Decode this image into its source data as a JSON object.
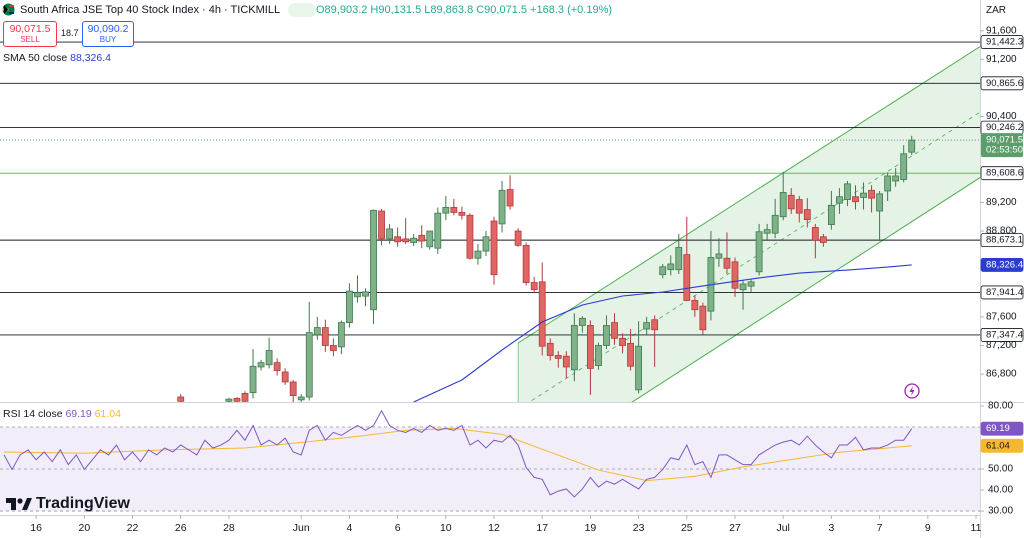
{
  "header": {
    "title": "South Africa JSE Top 40 Stock Index · 4h · TICKMILL",
    "ohlc": "O89,903.2 H90,131.5 L89,863.8 C90,071.5 +168.3 (+0.19%)",
    "sell_price": "90,071.5",
    "sell": "SELL",
    "spread": "18.7",
    "buy_price": "90,090.2",
    "buy": "BUY",
    "currency": "ZAR",
    "logo": "TradingView"
  },
  "chart_data": {
    "type": "candlestick",
    "up_color": "#7fb28a",
    "down_color": "#e06666",
    "xlim": [
      -0.5,
      121.5
    ],
    "ylim": [
      86410,
      92030
    ],
    "xticks": [
      {
        "value": 4,
        "label": "16"
      },
      {
        "value": 10,
        "label": "20"
      },
      {
        "value": 16,
        "label": "22"
      },
      {
        "value": 22,
        "label": "26"
      },
      {
        "value": 28,
        "label": "28"
      },
      {
        "value": 37,
        "label": "Jun"
      },
      {
        "value": 43,
        "label": "4"
      },
      {
        "value": 49,
        "label": "6"
      },
      {
        "value": 55,
        "label": "10"
      },
      {
        "value": 61,
        "label": "12"
      },
      {
        "value": 67,
        "label": "17"
      },
      {
        "value": 73,
        "label": "19"
      },
      {
        "value": 79,
        "label": "23"
      },
      {
        "value": 85,
        "label": "25"
      },
      {
        "value": 91,
        "label": "27"
      },
      {
        "value": 97,
        "label": "Jul"
      },
      {
        "value": 103,
        "label": "3"
      },
      {
        "value": 109,
        "label": "7"
      },
      {
        "value": 115,
        "label": "9"
      },
      {
        "value": 121,
        "label": "11"
      }
    ],
    "yticks": [
      {
        "value": 86800,
        "label": "86,800"
      },
      {
        "value": 87200,
        "label": "87,200"
      },
      {
        "value": 87600,
        "label": "87,600"
      },
      {
        "value": 88800,
        "label": "88,800"
      },
      {
        "value": 89200,
        "label": "89,200"
      },
      {
        "value": 90400,
        "label": "90,400"
      },
      {
        "value": 91200,
        "label": "91,200"
      },
      {
        "value": 91600,
        "label": "91,600"
      }
    ],
    "levels": [
      {
        "value": 91442.3,
        "label": "91,442.3",
        "color": "#131722"
      },
      {
        "value": 90865.6,
        "label": "90,865.6",
        "color": "#131722"
      },
      {
        "value": 90246.2,
        "label": "90,246.2",
        "color": "#131722"
      },
      {
        "value": 89608.6,
        "label": "89,608.6",
        "color": "#4caf50"
      },
      {
        "value": 88673.1,
        "label": "88,673.1",
        "color": "#131722"
      },
      {
        "value": 87941.4,
        "label": "87,941.4",
        "color": "#131722"
      },
      {
        "value": 87347.4,
        "label": "87,347.4",
        "color": "#131722"
      }
    ],
    "last_price": {
      "value": 90071.5,
      "label": "90,071.5",
      "countdown": "02:53:50",
      "color": "#5b9e6c"
    },
    "channel": {
      "color": "#4caf50",
      "upper": [
        [
          64,
          87235
        ],
        [
          122,
          91415
        ]
      ],
      "lower": [
        [
          64,
          85380
        ],
        [
          122,
          89583
        ]
      ]
    },
    "ohlc": [
      [
        22,
        86480,
        86520,
        86410,
        86420
      ],
      [
        28,
        86420,
        86470,
        86380,
        86450
      ],
      [
        29,
        86460,
        86480,
        86390,
        86420
      ],
      [
        30,
        86530,
        86560,
        86380,
        86420
      ],
      [
        31,
        86540,
        87150,
        86460,
        86910
      ],
      [
        32,
        86900,
        87000,
        86850,
        86960
      ],
      [
        33,
        86930,
        87310,
        86880,
        87130
      ],
      [
        34,
        86960,
        87020,
        86780,
        86850
      ],
      [
        35,
        86830,
        86880,
        86650,
        86690
      ],
      [
        36,
        86690,
        86720,
        86410,
        86500
      ],
      [
        37,
        86440,
        86520,
        86400,
        86480
      ],
      [
        38,
        86480,
        87810,
        86430,
        87380
      ],
      [
        39,
        87350,
        87600,
        87280,
        87450
      ],
      [
        40,
        87450,
        87560,
        87110,
        87200
      ],
      [
        41,
        87200,
        87300,
        87050,
        87130
      ],
      [
        42,
        87180,
        87550,
        87080,
        87520
      ],
      [
        43,
        87520,
        88070,
        87450,
        87960
      ],
      [
        44,
        87880,
        88180,
        87800,
        87940
      ],
      [
        45,
        87890,
        88000,
        87750,
        87950
      ],
      [
        46,
        87700,
        89100,
        87500,
        89090
      ],
      [
        47,
        89080,
        89110,
        88600,
        88690
      ],
      [
        48,
        88690,
        88900,
        88620,
        88830
      ],
      [
        49,
        88720,
        88850,
        88580,
        88650
      ],
      [
        50,
        88690,
        88980,
        88620,
        88650
      ],
      [
        51,
        88640,
        88760,
        88590,
        88700
      ],
      [
        52,
        88740,
        88880,
        88560,
        88660
      ],
      [
        53,
        88580,
        88800,
        88540,
        88800
      ],
      [
        54,
        88560,
        89130,
        88480,
        89050
      ],
      [
        55,
        89050,
        89290,
        88950,
        89130
      ],
      [
        56,
        89130,
        89250,
        89020,
        89060
      ],
      [
        57,
        89060,
        89140,
        88960,
        89020
      ],
      [
        58,
        89020,
        89050,
        88400,
        88420
      ],
      [
        59,
        88420,
        88620,
        88330,
        88520
      ],
      [
        60,
        88520,
        88800,
        88450,
        88720
      ],
      [
        61,
        88940,
        89000,
        88050,
        88190
      ],
      [
        62,
        88900,
        89500,
        88780,
        89370
      ],
      [
        63,
        89380,
        89580,
        89100,
        89150
      ],
      [
        64,
        88800,
        88840,
        88580,
        88600
      ],
      [
        65,
        88600,
        88640,
        88040,
        88080
      ],
      [
        66,
        88080,
        88160,
        87930,
        87980
      ],
      [
        67,
        88090,
        88360,
        87060,
        87190
      ],
      [
        68,
        87230,
        87300,
        86990,
        87060
      ],
      [
        69,
        87060,
        87120,
        86890,
        87020
      ],
      [
        70,
        87050,
        87120,
        86740,
        86900
      ],
      [
        71,
        86860,
        87650,
        86700,
        87480
      ],
      [
        72,
        87480,
        87610,
        87380,
        87580
      ],
      [
        73,
        87480,
        87550,
        86510,
        86880
      ],
      [
        74,
        86920,
        87240,
        86860,
        87200
      ],
      [
        75,
        87200,
        87620,
        87150,
        87480
      ],
      [
        76,
        87520,
        87650,
        87210,
        87300
      ],
      [
        77,
        87300,
        87370,
        87090,
        87200
      ],
      [
        78,
        87230,
        87430,
        86850,
        86910
      ],
      [
        79,
        86580,
        87540,
        86530,
        87190
      ],
      [
        80,
        87430,
        87600,
        87350,
        87520
      ],
      [
        81,
        87560,
        87620,
        86900,
        87420
      ],
      [
        82,
        88190,
        88340,
        88140,
        88300
      ],
      [
        83,
        88260,
        88460,
        88180,
        88340
      ],
      [
        84,
        88260,
        88760,
        88200,
        88570
      ],
      [
        85,
        88470,
        89000,
        87820,
        87830
      ],
      [
        86,
        87830,
        87900,
        87600,
        87700
      ],
      [
        87,
        87750,
        87800,
        87350,
        87420
      ],
      [
        88,
        87680,
        88800,
        87550,
        88430
      ],
      [
        89,
        88420,
        88700,
        88300,
        88480
      ],
      [
        90,
        88420,
        88780,
        88200,
        88280
      ],
      [
        91,
        88370,
        88430,
        87880,
        88000
      ],
      [
        92,
        87980,
        88110,
        87700,
        88060
      ],
      [
        93,
        88030,
        88120,
        87950,
        88090
      ],
      [
        94,
        88230,
        88900,
        88180,
        88790
      ],
      [
        95,
        88770,
        88900,
        88680,
        88820
      ],
      [
        96,
        88770,
        89250,
        88700,
        89020
      ],
      [
        97,
        89000,
        89630,
        88950,
        89340
      ],
      [
        98,
        89300,
        89400,
        89040,
        89110
      ],
      [
        99,
        89240,
        89290,
        88920,
        89050
      ],
      [
        100,
        89100,
        89260,
        88850,
        88960
      ],
      [
        101,
        88850,
        88900,
        88420,
        88670
      ],
      [
        102,
        88720,
        88760,
        88580,
        88640
      ],
      [
        103,
        88890,
        89360,
        88820,
        89160
      ],
      [
        104,
        89190,
        89400,
        89040,
        89280
      ],
      [
        105,
        89240,
        89500,
        89150,
        89460
      ],
      [
        106,
        89280,
        89440,
        89100,
        89210
      ],
      [
        107,
        89270,
        89480,
        89100,
        89330
      ],
      [
        108,
        89370,
        89440,
        89060,
        89260
      ],
      [
        109,
        89080,
        89360,
        88660,
        89320
      ],
      [
        110,
        89360,
        89620,
        89220,
        89570
      ],
      [
        111,
        89500,
        89680,
        89420,
        89570
      ],
      [
        112,
        89520,
        90000,
        89480,
        89880
      ],
      [
        113,
        89903.2,
        90131.5,
        89863.8,
        90071.5
      ]
    ],
    "sma": {
      "name": "SMA 50 close",
      "color": "#2a3dcf",
      "last_label": "88,326.4",
      "x": [
        51,
        57,
        62,
        67,
        72,
        77,
        82,
        87,
        94,
        99,
        105,
        110,
        113
      ],
      "values": [
        86410,
        86718,
        87137,
        87528,
        87766,
        87892,
        87948,
        88032,
        88144,
        88213,
        88255,
        88297,
        88326.4
      ]
    },
    "rsi": {
      "name": "RSI 14 close",
      "color": "#7e57c2",
      "last_label": "69.19",
      "ylim": [
        28.6,
        81.4
      ],
      "yticks": [
        {
          "value": 30,
          "label": "30.00"
        },
        {
          "value": 40,
          "label": "40.00"
        },
        {
          "value": 50,
          "label": "50.00"
        },
        {
          "value": 80,
          "label": "80.00"
        }
      ],
      "bands": [
        70,
        50,
        30
      ],
      "x": [
        0,
        1,
        2,
        3,
        4,
        5,
        6,
        7,
        8,
        9,
        10,
        11,
        12,
        13,
        14,
        15,
        16,
        17,
        18,
        19,
        20,
        21,
        22,
        23,
        24,
        25,
        26,
        27,
        28,
        29,
        30,
        31,
        32,
        33,
        34,
        35,
        36,
        37,
        38,
        39,
        40,
        41,
        42,
        43,
        44,
        45,
        46,
        47,
        48,
        49,
        50,
        51,
        52,
        53,
        54,
        55,
        56,
        57,
        58,
        59,
        60,
        61,
        62,
        63,
        64,
        65,
        66,
        67,
        68,
        69,
        70,
        71,
        72,
        73,
        74,
        75,
        76,
        77,
        78,
        79,
        80,
        81,
        82,
        83,
        84,
        85,
        86,
        87,
        88,
        89,
        90,
        91,
        92,
        93,
        94,
        95,
        96,
        97,
        98,
        99,
        100,
        101,
        102,
        103,
        104,
        105,
        106,
        107,
        108,
        109,
        110,
        111,
        112,
        113
      ],
      "values": [
        56.7,
        49.8,
        56.7,
        59.1,
        54.4,
        58.1,
        53.5,
        59.1,
        52.1,
        56.7,
        49.8,
        54.4,
        59.1,
        56.7,
        61.4,
        54.4,
        58.1,
        53.5,
        59.1,
        56.7,
        60.0,
        58.1,
        61.4,
        59.1,
        56.7,
        63.7,
        60.0,
        61.4,
        63.7,
        68.4,
        63.7,
        70.7,
        61.4,
        63.7,
        61.4,
        64.7,
        58.1,
        56.7,
        68.4,
        70.7,
        63.7,
        67.4,
        66.0,
        68.4,
        70.7,
        68.4,
        70.7,
        77.7,
        70.7,
        68.4,
        67.4,
        69.3,
        67.4,
        70.7,
        68.4,
        69.3,
        68.4,
        70.7,
        61.4,
        63.7,
        60.0,
        63.7,
        62.8,
        66.0,
        61.4,
        50.7,
        46.0,
        45.1,
        37.7,
        39.5,
        40.5,
        36.7,
        40.5,
        46.0,
        41.4,
        44.2,
        42.8,
        45.1,
        42.8,
        40.5,
        45.1,
        46.0,
        49.8,
        55.3,
        54.4,
        61.4,
        52.1,
        53.5,
        46.0,
        56.7,
        56.7,
        54.4,
        52.1,
        52.1,
        56.7,
        59.1,
        61.4,
        62.8,
        63.7,
        61.4,
        65.6,
        61.4,
        58.1,
        55.3,
        61.4,
        61.4,
        65.1,
        59.1,
        60.0,
        60.0,
        61.4,
        63.7,
        63.7,
        69.19
      ],
      "ma": {
        "color": "#f5b82e",
        "last_label": "61.04",
        "x": [
          0,
          10,
          20,
          30,
          38,
          44,
          50,
          56,
          62,
          68,
          74,
          80,
          86,
          92,
          98,
          104,
          110,
          113
        ],
        "values": [
          58.1,
          57.5,
          59.1,
          60.0,
          63.0,
          65.5,
          68.4,
          69.3,
          66.5,
          58.0,
          49.5,
          44.5,
          46.5,
          51.0,
          54.5,
          58.0,
          60.0,
          61.04
        ]
      }
    }
  }
}
